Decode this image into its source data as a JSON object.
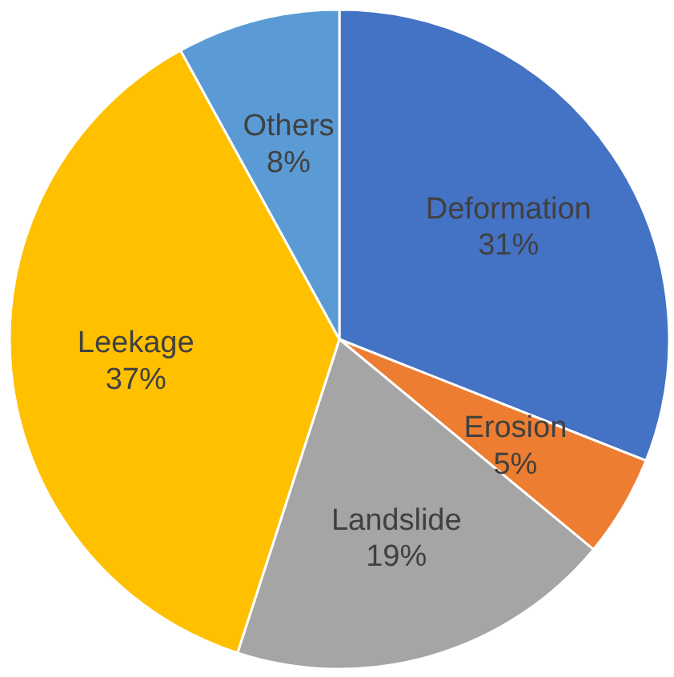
{
  "chart_data": {
    "type": "pie",
    "categories": [
      "Deformation",
      "Erosion",
      "Landslide",
      "Leekage",
      "Others"
    ],
    "values": [
      31,
      5,
      19,
      37,
      8
    ],
    "value_labels": [
      "31%",
      "5%",
      "19%",
      "37%",
      "8%"
    ],
    "colors": [
      "#4472c4",
      "#ed7d31",
      "#a5a5a5",
      "#ffc000",
      "#5b9bd5"
    ]
  }
}
